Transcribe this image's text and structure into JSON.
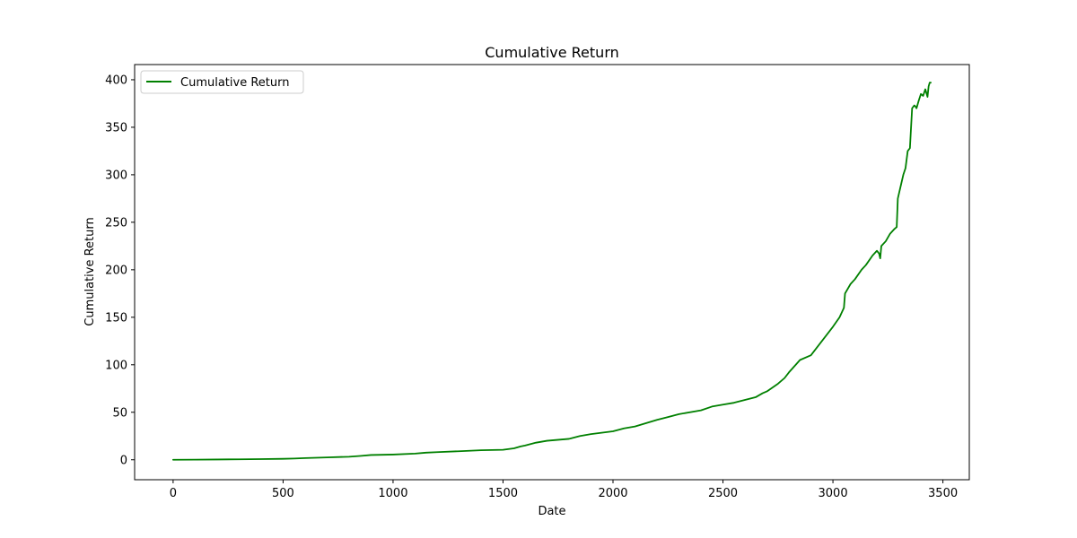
{
  "chart_data": {
    "type": "line",
    "title": "Cumulative Return",
    "xlabel": "Date",
    "ylabel": "Cumulative Return",
    "xlim": [
      -175,
      3620
    ],
    "ylim": [
      -21,
      416
    ],
    "xticks": [
      0,
      500,
      1000,
      1500,
      2000,
      2500,
      3000,
      3500
    ],
    "yticks": [
      0,
      50,
      100,
      150,
      200,
      250,
      300,
      350,
      400
    ],
    "grid": false,
    "legend_position": "upper left",
    "series": [
      {
        "name": "Cumulative Return",
        "color": "#008000",
        "x": [
          0,
          100,
          200,
          300,
          400,
          500,
          550,
          600,
          700,
          800,
          850,
          900,
          1000,
          1100,
          1150,
          1200,
          1300,
          1400,
          1500,
          1550,
          1580,
          1600,
          1650,
          1700,
          1800,
          1850,
          1900,
          2000,
          2050,
          2100,
          2200,
          2250,
          2300,
          2400,
          2450,
          2500,
          2550,
          2600,
          2650,
          2680,
          2700,
          2750,
          2780,
          2800,
          2850,
          2900,
          2950,
          3000,
          3030,
          3050,
          3055,
          3080,
          3100,
          3130,
          3150,
          3180,
          3200,
          3210,
          3215,
          3220,
          3240,
          3260,
          3280,
          3290,
          3295,
          3300,
          3310,
          3320,
          3330,
          3340,
          3350,
          3360,
          3370,
          3375,
          3380,
          3390,
          3400,
          3410,
          3420,
          3430,
          3435,
          3440,
          3445
        ],
        "y": [
          0,
          0.1,
          0.3,
          0.5,
          0.7,
          1,
          1.3,
          1.8,
          2.5,
          3.2,
          4,
          5,
          5.5,
          6.5,
          7.5,
          8,
          9,
          10,
          10.5,
          12,
          14,
          15,
          18,
          20,
          22,
          25,
          27,
          30,
          33,
          35,
          42,
          45,
          48,
          52,
          56,
          58,
          60,
          63,
          66,
          70,
          72,
          80,
          86,
          92,
          105,
          110,
          125,
          140,
          150,
          160,
          175,
          185,
          190,
          200,
          205,
          215,
          220,
          217,
          212,
          225,
          230,
          238,
          243,
          245,
          275,
          280,
          290,
          300,
          307,
          325,
          328,
          370,
          373,
          372,
          370,
          378,
          385,
          383,
          390,
          382,
          393,
          397,
          397
        ]
      }
    ]
  }
}
